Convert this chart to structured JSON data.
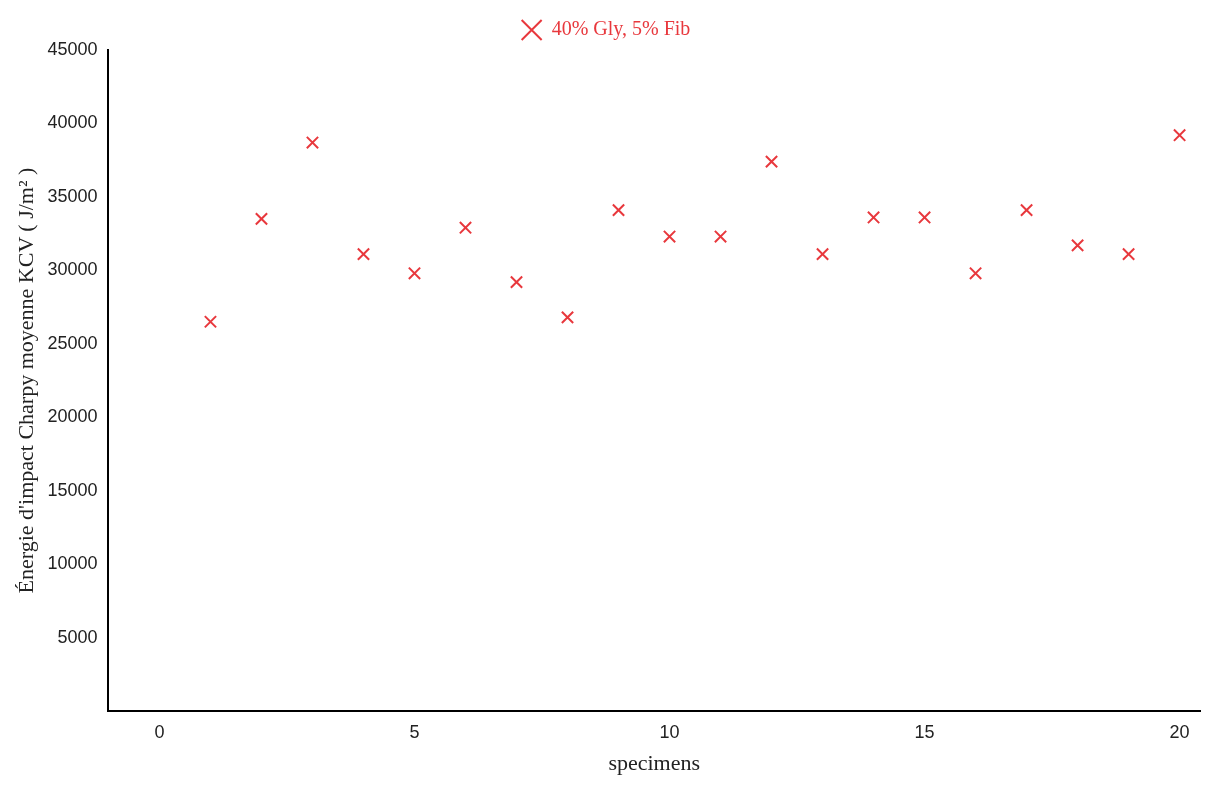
{
  "chart_data": {
    "type": "scatter",
    "xlabel": "specimens",
    "ylabel": "Énergie d'impact Charpy moyenne KCV ( J/m² )",
    "x": [
      1,
      2,
      3,
      4,
      5,
      6,
      7,
      8,
      9,
      10,
      11,
      12,
      13,
      14,
      15,
      16,
      17,
      18,
      19,
      20
    ],
    "series": [
      {
        "name": "40% Gly, 5% Fib",
        "color": "#e8383d",
        "values": [
          26500,
          33500,
          38700,
          31100,
          29800,
          32900,
          29200,
          26800,
          34100,
          32300,
          32300,
          37400,
          31100,
          33600,
          33600,
          29800,
          34100,
          31700,
          31100,
          39200
        ]
      }
    ],
    "xlim": [
      -1,
      20.4
    ],
    "xticks": [
      0,
      5,
      10,
      15,
      20
    ],
    "ylim": [
      0,
      45000
    ],
    "yticks": [
      5000,
      10000,
      15000,
      20000,
      25000,
      30000,
      35000,
      40000,
      45000
    ],
    "grid": false,
    "legend": "top",
    "marker": "cross"
  }
}
